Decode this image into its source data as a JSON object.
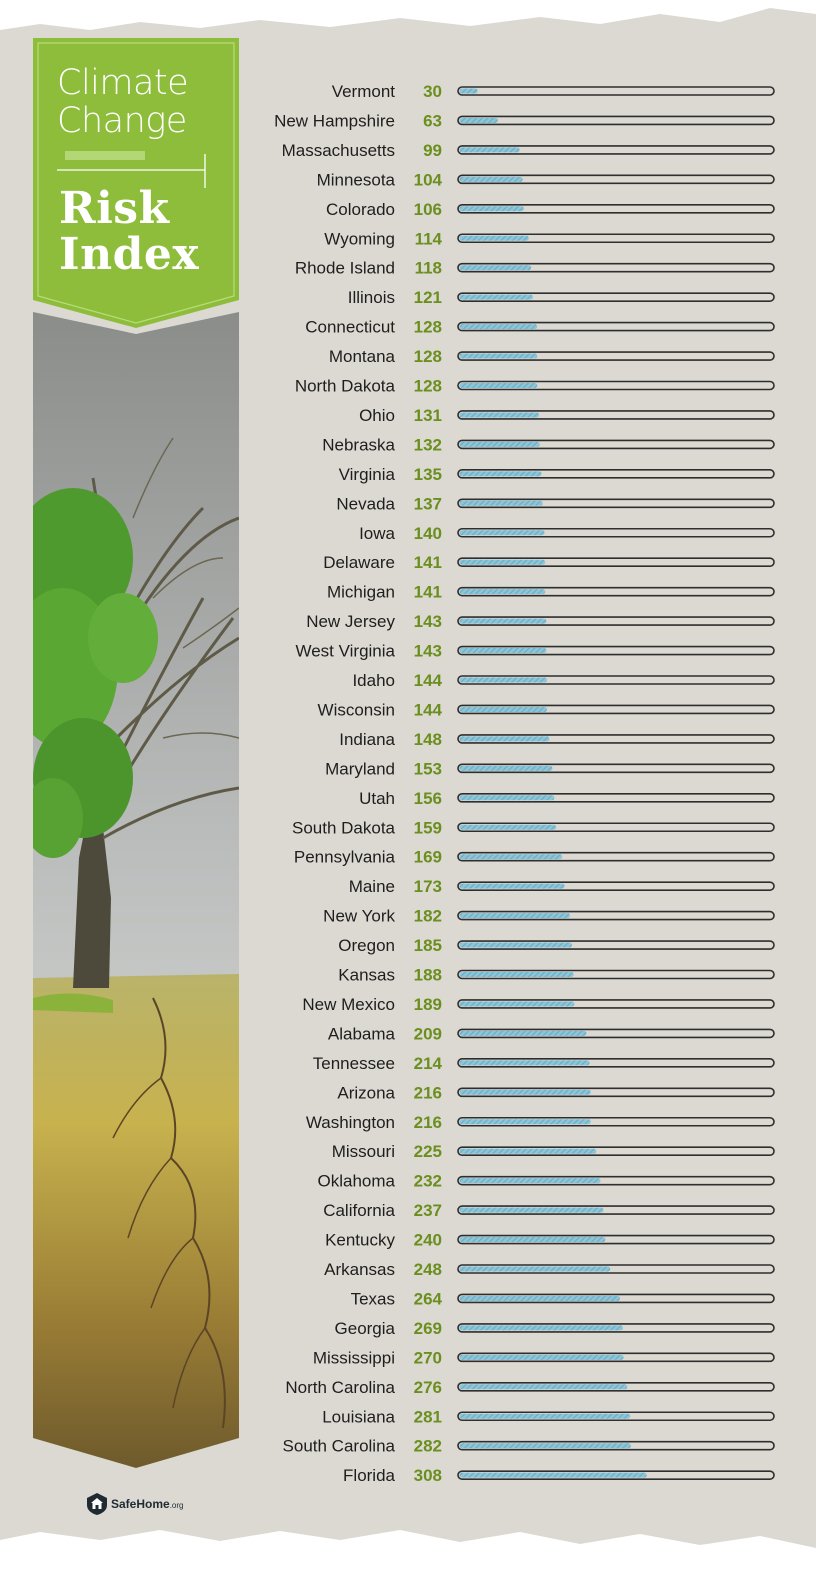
{
  "title": {
    "line1": "Climate",
    "line2": "Change",
    "line3": "Risk",
    "line4": "Index"
  },
  "logo": {
    "name": "SafeHome",
    "tld": ".org",
    "icon": "house-shield-icon"
  },
  "colors": {
    "background": "#dcd9d2",
    "banner_green": "#8dbd3a",
    "value_green": "#6b8f1f",
    "bar_fill": "#6fb6cf",
    "bar_outline": "#2e2e2e",
    "label_text": "#1e1e1e"
  },
  "chart_data": {
    "type": "bar",
    "orientation": "horizontal",
    "title": "Climate Change Risk Index",
    "xlim": [
      0,
      520
    ],
    "categories": [
      "Vermont",
      "New Hampshire",
      "Massachusetts",
      "Minnesota",
      "Colorado",
      "Wyoming",
      "Rhode Island",
      "Illinois",
      "Connecticut",
      "Montana",
      "North Dakota",
      "Ohio",
      "Nebraska",
      "Virginia",
      "Nevada",
      "Iowa",
      "Delaware",
      "Michigan",
      "New Jersey",
      "West Virginia",
      "Idaho",
      "Wisconsin",
      "Indiana",
      "Maryland",
      "Utah",
      "South Dakota",
      "Pennsylvania",
      "Maine",
      "New York",
      "Oregon",
      "Kansas",
      "New Mexico",
      "Alabama",
      "Tennessee",
      "Arizona",
      "Washington",
      "Missouri",
      "Oklahoma",
      "California",
      "Kentucky",
      "Arkansas",
      "Texas",
      "Georgia",
      "Mississippi",
      "North Carolina",
      "Louisiana",
      "South Carolina",
      "Florida"
    ],
    "values": [
      30,
      63,
      99,
      104,
      106,
      114,
      118,
      121,
      128,
      128,
      128,
      131,
      132,
      135,
      137,
      140,
      141,
      141,
      143,
      143,
      144,
      144,
      148,
      153,
      156,
      159,
      169,
      173,
      182,
      185,
      188,
      189,
      209,
      214,
      216,
      216,
      225,
      232,
      237,
      240,
      248,
      264,
      269,
      270,
      276,
      281,
      282,
      308
    ]
  }
}
